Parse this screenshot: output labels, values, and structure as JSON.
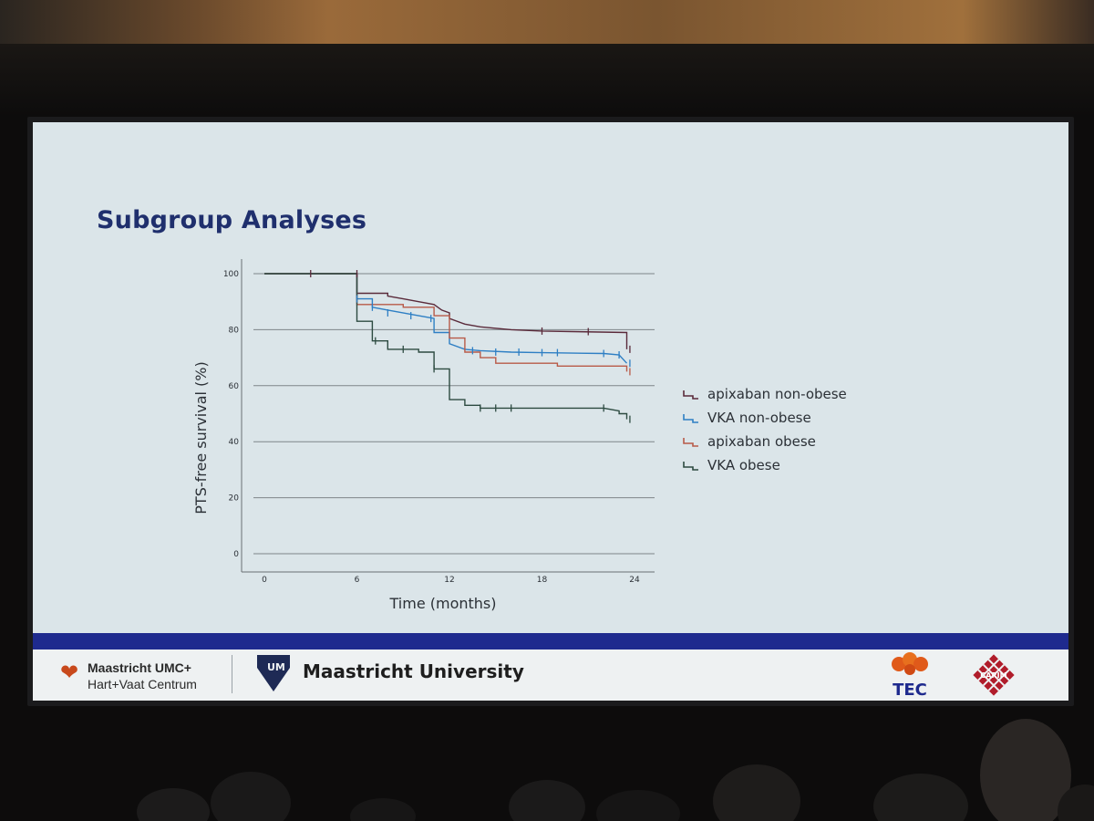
{
  "slide": {
    "title": "Subgroup Analyses"
  },
  "chart_data": {
    "type": "line",
    "title": "Subgroup Analyses",
    "xlabel": "Time (months)",
    "ylabel": "PTS-free survival (%)",
    "xlim": [
      0,
      24
    ],
    "ylim": [
      0,
      100
    ],
    "x_ticks": [
      0,
      6,
      12,
      18,
      24
    ],
    "y_ticks": [
      0,
      20,
      40,
      60,
      80,
      100
    ],
    "grid": "horizontal",
    "legend": "right",
    "series": [
      {
        "name": "apixaban non-obese",
        "color": "#5a2a3a",
        "points": [
          [
            0,
            100
          ],
          [
            6,
            100
          ],
          [
            6,
            93
          ],
          [
            8,
            93
          ],
          [
            8,
            92
          ],
          [
            9,
            91
          ],
          [
            10,
            90
          ],
          [
            11,
            89
          ],
          [
            11.5,
            87
          ],
          [
            12,
            86
          ],
          [
            12,
            84
          ],
          [
            13,
            82
          ],
          [
            14,
            81
          ],
          [
            16,
            80
          ],
          [
            18,
            79.5
          ],
          [
            20,
            79.3
          ],
          [
            23.5,
            79
          ],
          [
            23.5,
            73
          ]
        ],
        "censors": [
          [
            3,
            100
          ],
          [
            6,
            100
          ],
          [
            18,
            79.5
          ],
          [
            21,
            79.3
          ],
          [
            23.7,
            73
          ]
        ]
      },
      {
        "name": "VKA non-obese",
        "color": "#2e7fc4",
        "points": [
          [
            0,
            100
          ],
          [
            6,
            100
          ],
          [
            6,
            91
          ],
          [
            7,
            91
          ],
          [
            7,
            88
          ],
          [
            8,
            87
          ],
          [
            10,
            85
          ],
          [
            11,
            84
          ],
          [
            11,
            79
          ],
          [
            12,
            79
          ],
          [
            12,
            75
          ],
          [
            13,
            73
          ],
          [
            14,
            72.5
          ],
          [
            16,
            72
          ],
          [
            18,
            71.8
          ],
          [
            22,
            71.5
          ],
          [
            23,
            71
          ],
          [
            23.5,
            68
          ]
        ],
        "censors": [
          [
            6,
            91
          ],
          [
            7,
            88
          ],
          [
            8,
            86
          ],
          [
            9.5,
            85
          ],
          [
            10.8,
            84
          ],
          [
            13.5,
            72.5
          ],
          [
            15,
            72
          ],
          [
            16.5,
            72
          ],
          [
            18,
            71.8
          ],
          [
            19,
            71.8
          ],
          [
            22,
            71.5
          ],
          [
            23,
            71
          ],
          [
            23.7,
            68
          ]
        ]
      },
      {
        "name": "apixaban obese",
        "color": "#b85a48",
        "points": [
          [
            0,
            100
          ],
          [
            6,
            100
          ],
          [
            6,
            89
          ],
          [
            9,
            89
          ],
          [
            9,
            88
          ],
          [
            11,
            88
          ],
          [
            11,
            85
          ],
          [
            12,
            85
          ],
          [
            12,
            77
          ],
          [
            13,
            77
          ],
          [
            13,
            72
          ],
          [
            14,
            72
          ],
          [
            14,
            70
          ],
          [
            15,
            70
          ],
          [
            15,
            68
          ],
          [
            19,
            68
          ],
          [
            19,
            67
          ],
          [
            23.5,
            67
          ],
          [
            23.5,
            65
          ]
        ],
        "censors": [
          [
            23.7,
            65
          ]
        ]
      },
      {
        "name": "VKA obese",
        "color": "#2c4a40",
        "points": [
          [
            0,
            100
          ],
          [
            6,
            100
          ],
          [
            6,
            83
          ],
          [
            7,
            83
          ],
          [
            7,
            76
          ],
          [
            8,
            76
          ],
          [
            8,
            73
          ],
          [
            10,
            73
          ],
          [
            10,
            72
          ],
          [
            11,
            72
          ],
          [
            11,
            66
          ],
          [
            12,
            66
          ],
          [
            12,
            55
          ],
          [
            13,
            55
          ],
          [
            13,
            53
          ],
          [
            14,
            53
          ],
          [
            14,
            52
          ],
          [
            22,
            52
          ],
          [
            23,
            51
          ],
          [
            23,
            50
          ],
          [
            23.5,
            50
          ],
          [
            23.5,
            48
          ]
        ],
        "censors": [
          [
            7.2,
            76
          ],
          [
            9,
            73
          ],
          [
            11,
            66
          ],
          [
            14,
            52
          ],
          [
            15,
            52
          ],
          [
            16,
            52
          ],
          [
            22,
            52
          ],
          [
            23.7,
            48
          ]
        ]
      }
    ]
  },
  "footer": {
    "mumc_name": "Maastricht UMC+",
    "mumc_sub": "Hart+Vaat Centrum",
    "um_name": "Maastricht University",
    "um_badge_text": "UM",
    "tec_text": "TEC",
    "carim_text": "CARIM"
  }
}
